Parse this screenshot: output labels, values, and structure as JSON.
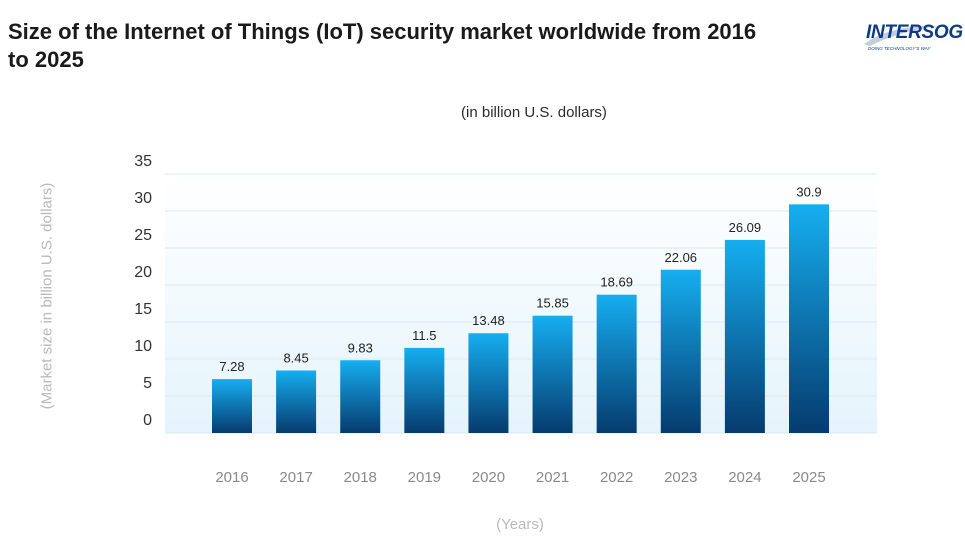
{
  "header": {
    "title": "Size of the Internet of Things (IoT) security market worldwide from 2016 to 2025"
  },
  "logo": {
    "word": "INTERSOG",
    "tagline": "DOING TECHNOLOGY'S WAY",
    "color": "#0d3b84"
  },
  "chart_data": {
    "type": "bar",
    "title": "Size of the Internet of Things (IoT) security market worldwide from 2016 to 2025",
    "subtitle": "(in billion U.S. dollars)",
    "xlabel": "(Years)",
    "ylabel": "(Market size in billion U.S. dollars)",
    "categories": [
      "2016",
      "2017",
      "2018",
      "2019",
      "2020",
      "2021",
      "2022",
      "2023",
      "2024",
      "2025"
    ],
    "values": [
      7.28,
      8.45,
      9.83,
      11.5,
      13.48,
      15.85,
      18.69,
      22.06,
      26.09,
      30.9
    ],
    "value_labels": [
      "7.28",
      "8.45",
      "9.83",
      "11.5",
      "13.48",
      "15.85",
      "18.69",
      "22.06",
      "26.09",
      "30.9"
    ],
    "ylim": [
      0,
      35
    ],
    "yticks": [
      "0",
      "5",
      "10",
      "15",
      "20",
      "25",
      "30",
      "35"
    ],
    "grid": true,
    "bar_color_top": "#16aef0",
    "bar_color_bottom": "#063b6e"
  }
}
